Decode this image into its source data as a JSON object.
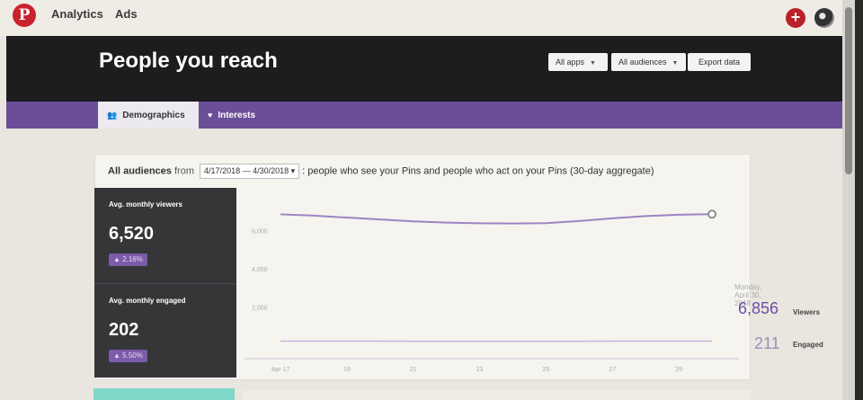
{
  "nav": {
    "logo": "P",
    "analytics": "Analytics",
    "ads": "Ads",
    "create_icon": "plus-icon",
    "avatar_icon": "avatar"
  },
  "header": {
    "title": "People you reach",
    "apps_label": "All apps",
    "audiences_label": "All audiences",
    "export_label": "Export data"
  },
  "tabs": [
    {
      "label": "Demographics",
      "icon": "people-icon",
      "active": true
    },
    {
      "label": "Interests",
      "icon": "heart-icon",
      "active": false
    }
  ],
  "filter": {
    "audience": "All audiences",
    "from": "from",
    "date_range": "4/17/2018 — 4/30/2018",
    "description": ": people who see your Pins and people who act on your Pins (30-day aggregate)"
  },
  "stats": [
    {
      "label": "Avg. monthly viewers",
      "value": "6,520",
      "change": "2.16%"
    },
    {
      "label": "Avg. monthly engaged",
      "value": "202",
      "change": "5.50%"
    }
  ],
  "tooltip": {
    "date": "Monday, April 30, 2018",
    "viewers_value": "6,856",
    "viewers_label": "Viewers",
    "engaged_value": "211",
    "engaged_label": "Engaged"
  },
  "colors": {
    "accent_purple": "#6b4e98",
    "viewers_line": "#9b85c2",
    "engaged_line": "#c4b6dc"
  },
  "chart_data": {
    "type": "line",
    "x": [
      "Apr 17",
      "Apr 18",
      "Apr 19",
      "Apr 20",
      "Apr 21",
      "Apr 22",
      "Apr 23",
      "Apr 24",
      "Apr 25",
      "Apr 26",
      "Apr 27",
      "Apr 28",
      "Apr 29",
      "Apr 30"
    ],
    "x_tick_labels": [
      "Apr 17",
      "19",
      "21",
      "23",
      "25",
      "27",
      "29"
    ],
    "y_tick_labels": [
      "6,000",
      "4,000",
      "2,000"
    ],
    "ylim": [
      0,
      8000
    ],
    "series": [
      {
        "name": "Viewers",
        "values": [
          6850,
          6780,
          6680,
          6580,
          6480,
          6420,
          6380,
          6370,
          6390,
          6500,
          6640,
          6760,
          6830,
          6856
        ]
      },
      {
        "name": "Engaged",
        "values": [
          212,
          211,
          210,
          209,
          208,
          207,
          206,
          206,
          207,
          208,
          209,
          210,
          211,
          211
        ]
      }
    ]
  }
}
